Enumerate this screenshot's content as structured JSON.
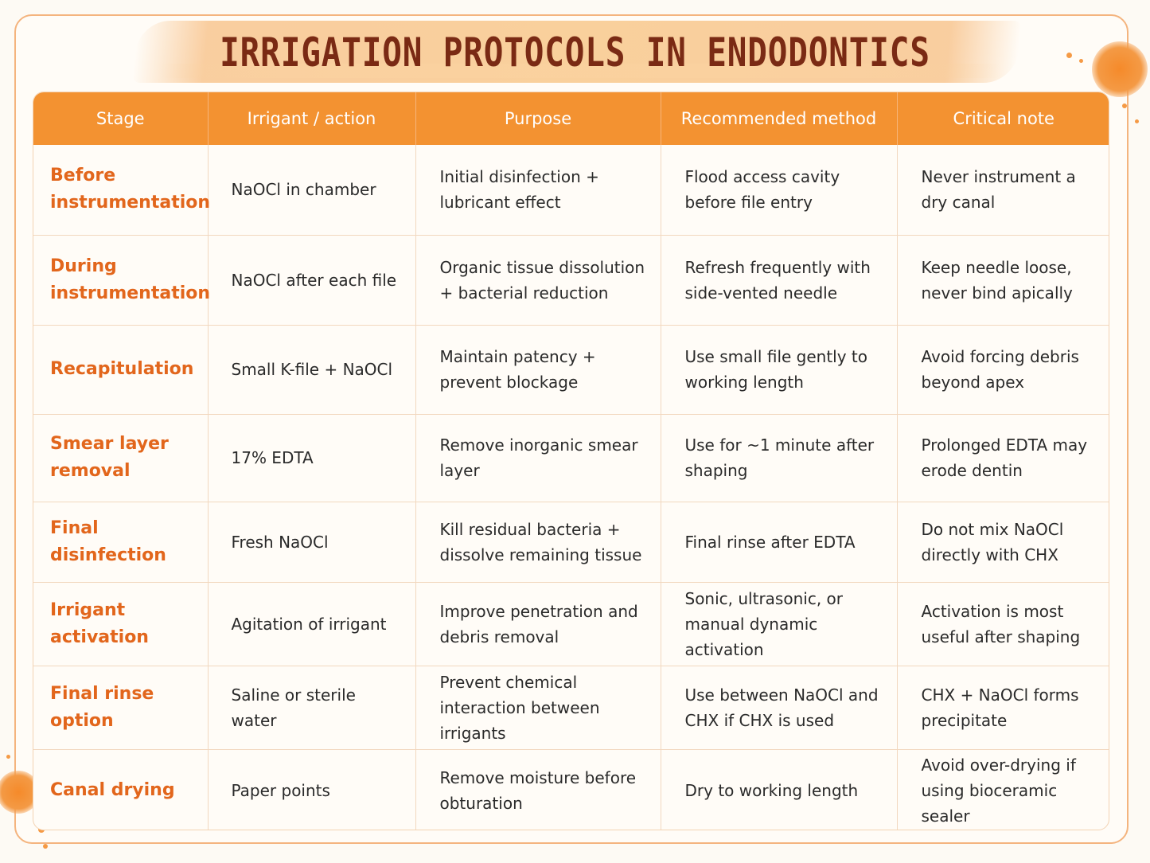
{
  "title": "IRRIGATION PROTOCOLS IN ENDODONTICS",
  "colors": {
    "accent": "#f39231",
    "stage_text": "#e2661c",
    "title_text": "#7a2a14",
    "border": "#f4b47e"
  },
  "table": {
    "headers": [
      "Stage",
      "Irrigant / action",
      "Purpose",
      "Recommended method",
      "Critical note"
    ],
    "rows": [
      {
        "stage": "Before instrumentation",
        "irrigant": "NaOCl in chamber",
        "purpose": "Initial disinfection + lubricant effect",
        "method": "Flood access cavity before file entry",
        "note": "Never instrument a dry canal"
      },
      {
        "stage": "During instrumentation",
        "irrigant": "NaOCl after each file",
        "purpose": "Organic tissue dissolution + bacterial reduction",
        "method": "Refresh frequently with side-vented needle",
        "note": "Keep needle loose, never bind apically"
      },
      {
        "stage": "Recapitulation",
        "irrigant": "Small K-file + NaOCl",
        "purpose": "Maintain patency + prevent blockage",
        "method": "Use small file gently to working length",
        "note": "Avoid forcing debris beyond apex"
      },
      {
        "stage": "Smear layer removal",
        "irrigant": "17% EDTA",
        "purpose": "Remove inorganic smear layer",
        "method": "Use for ~1 minute after shaping",
        "note": "Prolonged EDTA may erode dentin"
      },
      {
        "stage": "Final disinfection",
        "irrigant": "Fresh NaOCl",
        "purpose": "Kill residual bacteria + dissolve remaining tissue",
        "method": "Final rinse after EDTA",
        "note": "Do not mix NaOCl directly with CHX"
      },
      {
        "stage": "Irrigant activation",
        "irrigant": "Agitation of irrigant",
        "purpose": "Improve penetration and debris removal",
        "method": "Sonic, ultrasonic, or manual dynamic activation",
        "note": "Activation is most useful after shaping"
      },
      {
        "stage": "Final rinse option",
        "irrigant": "Saline or sterile water",
        "purpose": "Prevent chemical interaction between irrigants",
        "method": "Use between NaOCl and CHX if CHX is used",
        "note": "CHX + NaOCl forms precipitate"
      },
      {
        "stage": "Canal drying",
        "irrigant": "Paper points",
        "purpose": "Remove moisture before obturation",
        "method": "Dry to working length",
        "note": "Avoid over-drying if using bioceramic sealer"
      }
    ]
  }
}
